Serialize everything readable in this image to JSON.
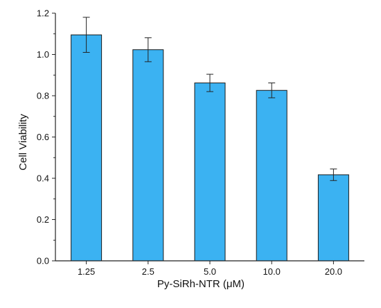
{
  "chart_data": {
    "type": "bar",
    "xlabel": "Py-SiRh-NTR (μM)",
    "ylabel": "Cell Viability",
    "categories": [
      "1.25",
      "2.5",
      "5.0",
      "10.0",
      "20.0"
    ],
    "values": [
      1.095,
      1.023,
      0.862,
      0.826,
      0.417
    ],
    "errors": [
      0.085,
      0.058,
      0.042,
      0.036,
      0.028
    ],
    "ylim": [
      0.0,
      1.2
    ],
    "yticks": [
      "0.0",
      "0.2",
      "0.4",
      "0.6",
      "0.8",
      "1.0",
      "1.2"
    ],
    "grid": false,
    "bar_color": "#3bb2f2",
    "bar_edge_color": "#1a1a1a"
  }
}
